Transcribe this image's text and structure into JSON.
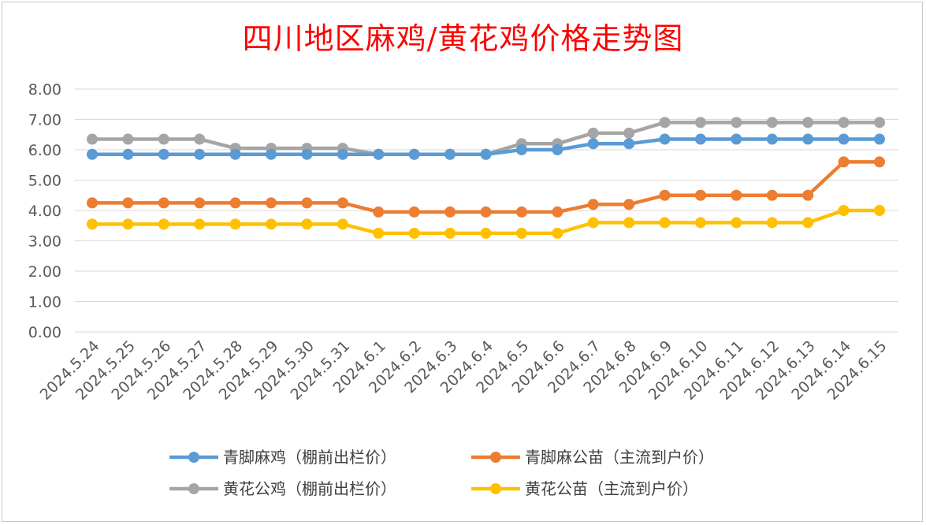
{
  "chart_data": {
    "type": "line",
    "title": "四川地区麻鸡/黄花鸡价格走势图",
    "xlabel": "",
    "ylabel": "",
    "ylim": [
      0,
      8
    ],
    "yticks": [
      "0.00",
      "1.00",
      "2.00",
      "3.00",
      "4.00",
      "5.00",
      "6.00",
      "7.00",
      "8.00"
    ],
    "grid": true,
    "legend_position": "bottom",
    "categories": [
      "2024.5.24",
      "2024.5.25",
      "2024.5.26",
      "2024.5.27",
      "2024.5.28",
      "2024.5.29",
      "2024.5.30",
      "2024.5.31",
      "2024.6.1",
      "2024.6.2",
      "2024.6.3",
      "2024.6.4",
      "2024.6.5",
      "2024.6.6",
      "2024.6.7",
      "2024.6.8",
      "2024.6.9",
      "2024.6.10",
      "2024.6.11",
      "2024.6.12",
      "2024.6.13",
      "2024.6.14",
      "2024.6.15"
    ],
    "series": [
      {
        "name": "青脚麻鸡（棚前出栏价）",
        "color": "#5b9bd5",
        "values": [
          5.85,
          5.85,
          5.85,
          5.85,
          5.85,
          5.85,
          5.85,
          5.85,
          5.85,
          5.85,
          5.85,
          5.85,
          6.0,
          6.0,
          6.2,
          6.2,
          6.35,
          6.35,
          6.35,
          6.35,
          6.35,
          6.35,
          6.35
        ]
      },
      {
        "name": "青脚麻公苗（主流到户价）",
        "color": "#ed7d31",
        "values": [
          4.25,
          4.25,
          4.25,
          4.25,
          4.25,
          4.25,
          4.25,
          4.25,
          3.95,
          3.95,
          3.95,
          3.95,
          3.95,
          3.95,
          4.2,
          4.2,
          4.5,
          4.5,
          4.5,
          4.5,
          4.5,
          5.6,
          5.6
        ]
      },
      {
        "name": "黄花公鸡（棚前出栏价）",
        "color": "#a5a5a5",
        "values": [
          6.35,
          6.35,
          6.35,
          6.35,
          6.05,
          6.05,
          6.05,
          6.05,
          5.85,
          5.85,
          5.85,
          5.85,
          6.2,
          6.2,
          6.55,
          6.55,
          6.9,
          6.9,
          6.9,
          6.9,
          6.9,
          6.9,
          6.9
        ]
      },
      {
        "name": "黄花公苗（主流到户价）",
        "color": "#ffc000",
        "values": [
          3.55,
          3.55,
          3.55,
          3.55,
          3.55,
          3.55,
          3.55,
          3.55,
          3.25,
          3.25,
          3.25,
          3.25,
          3.25,
          3.25,
          3.6,
          3.6,
          3.6,
          3.6,
          3.6,
          3.6,
          3.6,
          4.0,
          4.0
        ]
      }
    ]
  }
}
